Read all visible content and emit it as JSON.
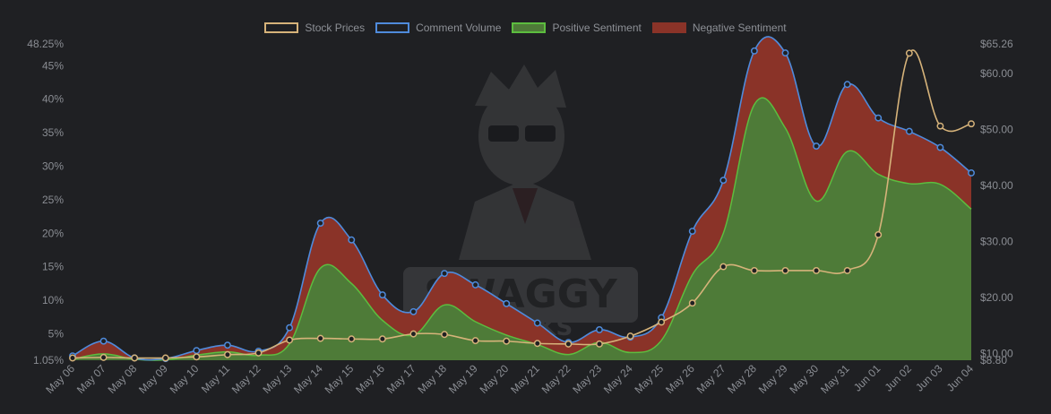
{
  "chart_data": {
    "type": "line",
    "categories": [
      "May 06",
      "May 07",
      "May 08",
      "May 09",
      "May 10",
      "May 11",
      "May 12",
      "May 13",
      "May 14",
      "May 15",
      "May 16",
      "May 17",
      "May 18",
      "May 19",
      "May 20",
      "May 21",
      "May 22",
      "May 23",
      "May 24",
      "May 25",
      "May 26",
      "May 27",
      "May 28",
      "May 29",
      "May 30",
      "May 31",
      "Jun 01",
      "Jun 02",
      "Jun 03",
      "Jun 04"
    ],
    "left_axis": {
      "min": 1.05,
      "max": 48.25,
      "ticks": [
        "1.05%",
        "5%",
        "10%",
        "15%",
        "20%",
        "25%",
        "30%",
        "35%",
        "40%",
        "45%",
        "48.25%"
      ],
      "tick_values": [
        1.05,
        5,
        10,
        15,
        20,
        25,
        30,
        35,
        40,
        45,
        48.25
      ]
    },
    "right_axis": {
      "min": 8.8,
      "max": 65.26,
      "ticks": [
        "$8.80",
        "$10.00",
        "$20.00",
        "$30.00",
        "$40.00",
        "$50.00",
        "$60.00",
        "$65.26"
      ],
      "tick_values": [
        8.8,
        10,
        20,
        30,
        40,
        50,
        60,
        65.26
      ]
    },
    "series": [
      {
        "name": "Stock Prices",
        "axis": "right",
        "style": "line",
        "color": "#d6b37a",
        "values": [
          9.2,
          9.3,
          9.2,
          9.2,
          9.4,
          9.8,
          10.1,
          12.4,
          12.7,
          12.6,
          12.6,
          13.5,
          13.4,
          12.3,
          12.2,
          11.8,
          11.7,
          11.7,
          13.1,
          15.6,
          19.0,
          25.5,
          24.8,
          24.8,
          24.8,
          24.8,
          31.2,
          63.6,
          50.6,
          51.0
        ]
      },
      {
        "name": "Comment Volume",
        "axis": "left",
        "style": "line",
        "color": "#4f8bdc",
        "values": [
          1.7,
          3.9,
          1.4,
          1.3,
          2.5,
          3.3,
          2.4,
          5.9,
          21.5,
          19.0,
          10.8,
          8.3,
          14.0,
          12.3,
          9.5,
          6.6,
          3.7,
          5.6,
          4.5,
          7.4,
          20.3,
          27.9,
          47.2,
          46.9,
          33.0,
          42.2,
          37.2,
          35.2,
          32.8,
          29.0
        ]
      },
      {
        "name": "Positive Sentiment",
        "axis": "left",
        "style": "area",
        "color": "#4e7b38",
        "values": [
          1.2,
          2.0,
          1.2,
          1.1,
          1.8,
          2.3,
          1.8,
          3.5,
          14.8,
          12.5,
          7.0,
          4.8,
          9.3,
          6.8,
          4.8,
          3.4,
          1.9,
          3.7,
          2.2,
          4.0,
          13.8,
          20.0,
          39.2,
          35.7,
          24.8,
          32.2,
          28.8,
          27.4,
          27.3,
          23.6
        ]
      },
      {
        "name": "Negative Sentiment",
        "axis": "left",
        "style": "area",
        "color": "#8a3328",
        "values": [
          1.7,
          3.9,
          1.4,
          1.3,
          2.5,
          3.3,
          2.4,
          5.9,
          21.5,
          19.0,
          10.8,
          8.3,
          14.0,
          12.3,
          9.5,
          6.6,
          3.7,
          5.6,
          4.5,
          7.4,
          20.3,
          27.9,
          47.2,
          46.9,
          33.0,
          42.2,
          37.2,
          35.2,
          32.8,
          29.0
        ]
      }
    ],
    "legend_position": "top-center",
    "grid": false
  },
  "legend": [
    {
      "label": "Stock Prices",
      "color": "#d6b37a",
      "fill": "transparent"
    },
    {
      "label": "Comment Volume",
      "color": "#4f8bdc",
      "fill": "transparent"
    },
    {
      "label": "Positive Sentiment",
      "color": "#5cbd3f",
      "fill": "#4e7b38"
    },
    {
      "label": "Negative Sentiment",
      "color": "#8a3328",
      "fill": "#8a3328"
    }
  ],
  "watermark": {
    "line1": "SWAGGY",
    "line2": "STOCKS"
  }
}
